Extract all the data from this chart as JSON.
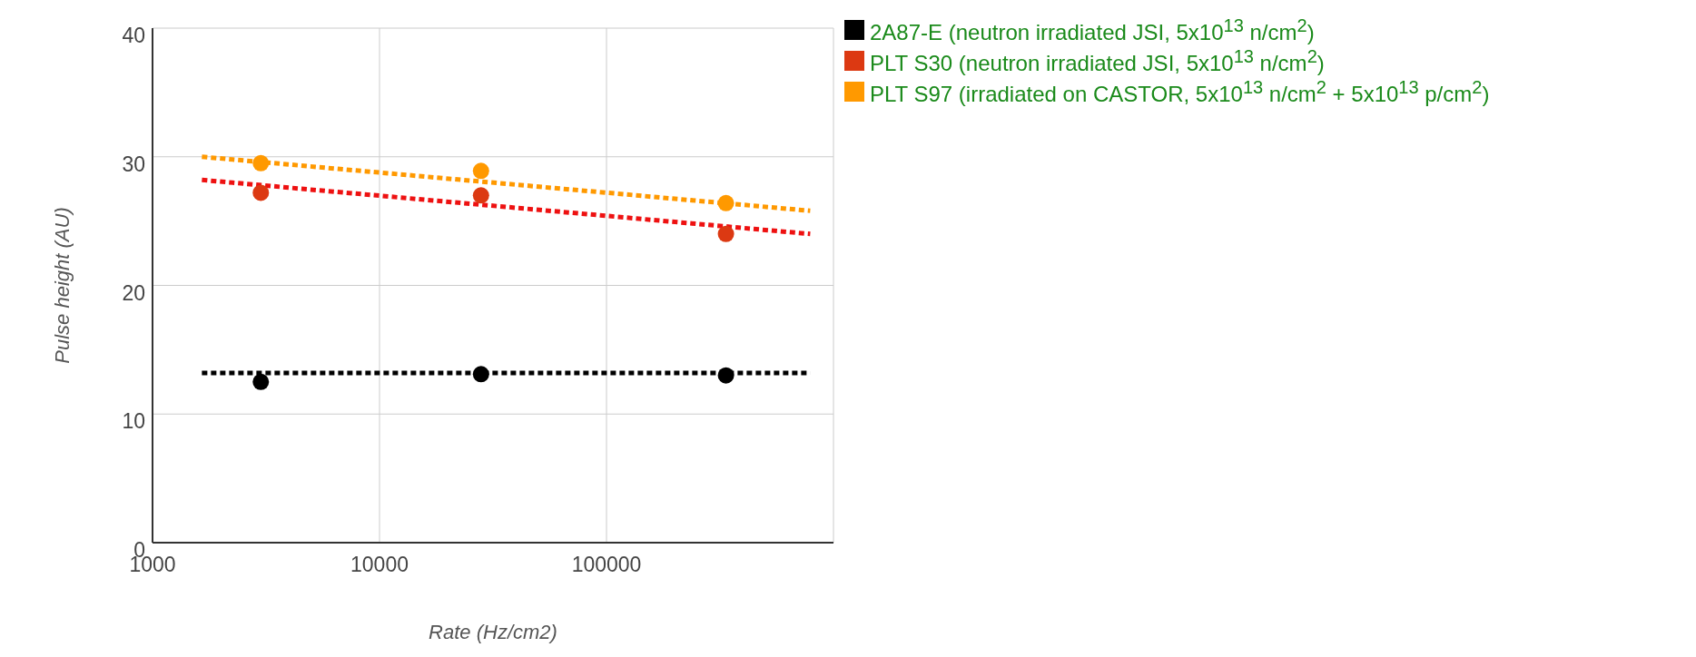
{
  "chart_data": {
    "type": "scatter",
    "xlabel": "Rate (Hz/cm2)",
    "ylabel": "Pulse height (AU)",
    "log": "x",
    "grid": true,
    "legend": "right",
    "marker": "circle",
    "xlim": [
      1000,
      1000000
    ],
    "xticks": [
      1000,
      10000,
      100000
    ],
    "ylim": [
      0,
      40
    ],
    "yticks": [
      0,
      10,
      20,
      30,
      40
    ],
    "series": [
      {
        "name": "2A87-E  (neutron irradiated JSI, 5x10$^{13}$ n/cm$^{2}$)",
        "color": "#000000",
        "x": [
          3000,
          28000,
          336000
        ],
        "values": [
          12.5,
          13.1,
          13.0
        ]
      },
      {
        "name": "PLT S30 (neutron irradiated JSI, 5x10$^{13}$ n/cm$^{2}$)",
        "color": "#dc3912",
        "x": [
          3000,
          28000,
          336000
        ],
        "values": [
          27.2,
          27.0,
          24.0
        ]
      },
      {
        "name": "PLT S97 (irradiated on CASTOR, 5x10$^{13}$ n/cm$^{2}$ + 5x10$^{13}$ p/cm$^{2}$)",
        "color": "#ff9900",
        "x": [
          3000,
          28000,
          336000
        ],
        "values": [
          29.5,
          28.9,
          26.4
        ]
      },
      {
        "type": "line",
        "line_style": "dotted",
        "marker": "none",
        "color": "#000000",
        "x": [
          1650,
          790000
        ],
        "values": [
          13.2,
          13.2
        ]
      },
      {
        "type": "line",
        "line_style": "dotted",
        "marker": "none",
        "color": "#ee1111",
        "x": [
          1650,
          790000
        ],
        "values": [
          28.2,
          24.0
        ]
      },
      {
        "type": "line",
        "line_style": "dotted",
        "marker": "none",
        "color": "#ff9900",
        "x": [
          1650,
          790000
        ],
        "values": [
          30.0,
          25.8
        ]
      }
    ]
  }
}
